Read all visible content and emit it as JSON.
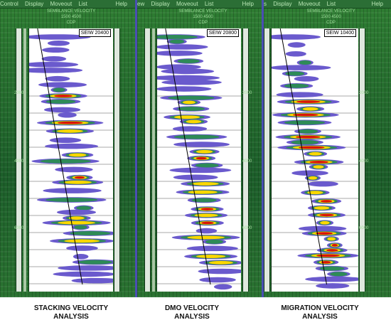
{
  "panels": [
    {
      "menu": [
        "Control",
        "Display",
        "Moveout",
        "List"
      ],
      "help": "Help",
      "header_lines": [
        "SEMBLANCE VELOCITY",
        "1500 4500",
        "CDP"
      ],
      "ident": "SEIW 20400",
      "ticks": [
        "2000",
        "4000",
        "6000"
      ],
      "caption_line1": "STACKING VELOCITY",
      "caption_line2": "ANALYSIS"
    },
    {
      "menu": [
        "ew",
        "Display",
        "Moveout",
        "List"
      ],
      "help": "Help",
      "header_lines": [
        "SEMBLANCE VELOCITY",
        "1500 4500",
        "CDP"
      ],
      "ident": "SEIW 20800",
      "ticks": [
        "2000",
        "4000",
        "6000"
      ],
      "caption_line1": "DMO VELOCITY",
      "caption_line2": "ANALYSIS"
    },
    {
      "menu": [
        "s",
        "Display",
        "Moveout",
        "List"
      ],
      "help": "Help",
      "header_lines": [
        "SEMBLANCE VELOCITY",
        "1500 4500",
        "CDP"
      ],
      "ident": "SEIW 10400",
      "ticks": [
        "2000",
        "4000",
        "6000"
      ],
      "caption_line1": "MIGRATION VELOCITY",
      "caption_line2": "ANALYSIS"
    }
  ],
  "colors": {
    "background_green": "#1f6a2c",
    "semblance_low": "#6a5acd",
    "semblance_mid": "#2e8b57",
    "semblance_high": "#ffd700",
    "semblance_peak": "#d8140a",
    "divider_blue": "#4a4fb3"
  }
}
